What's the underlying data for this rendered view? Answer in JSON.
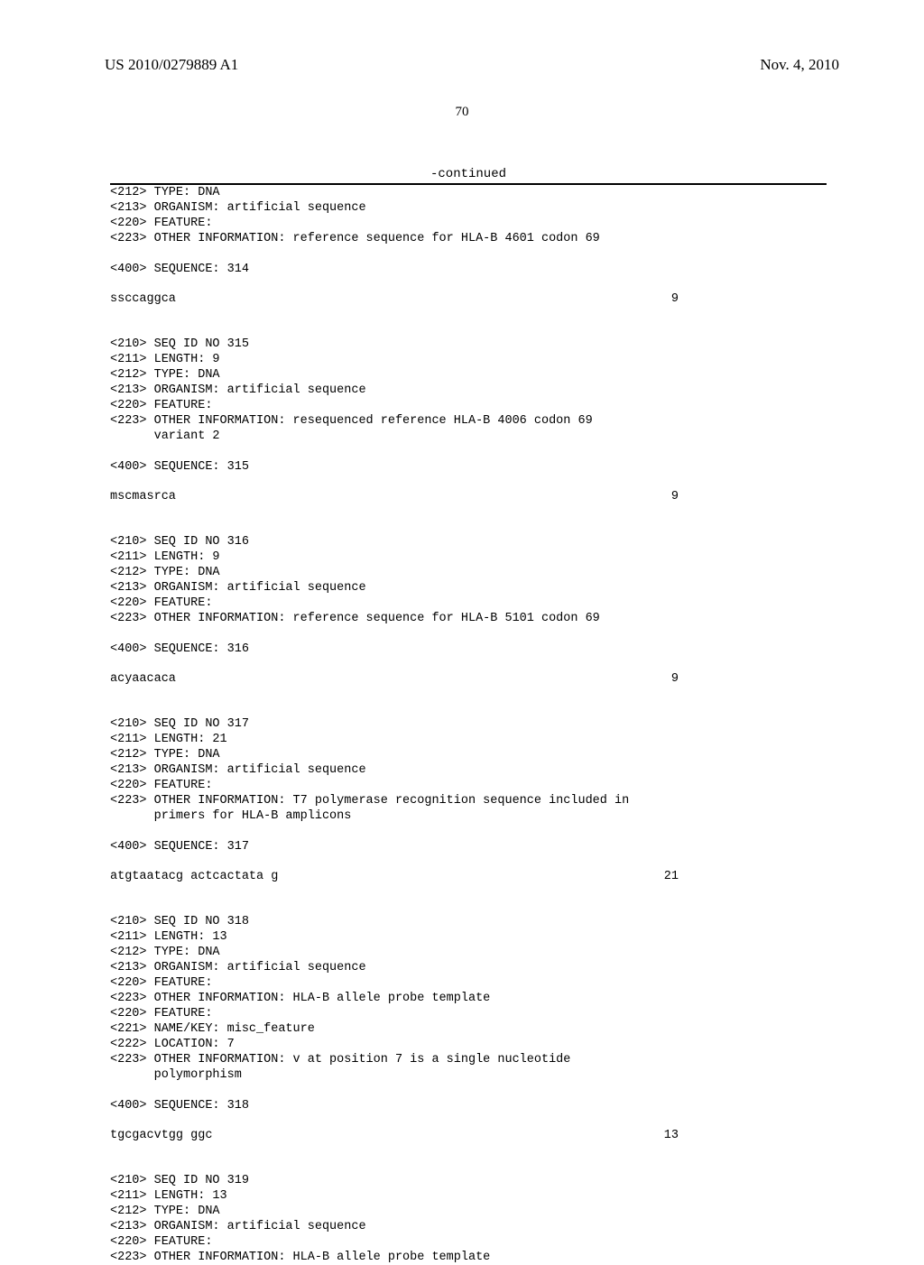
{
  "header": {
    "pub_no": "US 2010/0279889 A1",
    "pub_date": "Nov. 4, 2010"
  },
  "page_number": "70",
  "continued_label": "-continued",
  "entries": [
    {
      "lines": [
        "<212> TYPE: DNA",
        "<213> ORGANISM: artificial sequence",
        "<220> FEATURE:",
        "<223> OTHER INFORMATION: reference sequence for HLA-B 4601 codon 69"
      ]
    },
    {
      "gap": "sm"
    },
    {
      "lines": [
        "<400> SEQUENCE: 314"
      ]
    },
    {
      "gap": "sm"
    },
    {
      "seq": {
        "text": "ssccaggca",
        "len": "9"
      }
    },
    {
      "gap": "md"
    },
    {
      "lines": [
        "<210> SEQ ID NO 315",
        "<211> LENGTH: 9",
        "<212> TYPE: DNA",
        "<213> ORGANISM: artificial sequence",
        "<220> FEATURE:",
        "<223> OTHER INFORMATION: resequenced reference HLA-B 4006 codon 69",
        "      variant 2"
      ]
    },
    {
      "gap": "sm"
    },
    {
      "lines": [
        "<400> SEQUENCE: 315"
      ]
    },
    {
      "gap": "sm"
    },
    {
      "seq": {
        "text": "mscmasrca",
        "len": "9"
      }
    },
    {
      "gap": "md"
    },
    {
      "lines": [
        "<210> SEQ ID NO 316",
        "<211> LENGTH: 9",
        "<212> TYPE: DNA",
        "<213> ORGANISM: artificial sequence",
        "<220> FEATURE:",
        "<223> OTHER INFORMATION: reference sequence for HLA-B 5101 codon 69"
      ]
    },
    {
      "gap": "sm"
    },
    {
      "lines": [
        "<400> SEQUENCE: 316"
      ]
    },
    {
      "gap": "sm"
    },
    {
      "seq": {
        "text": "acyaacaca",
        "len": "9"
      }
    },
    {
      "gap": "md"
    },
    {
      "lines": [
        "<210> SEQ ID NO 317",
        "<211> LENGTH: 21",
        "<212> TYPE: DNA",
        "<213> ORGANISM: artificial sequence",
        "<220> FEATURE:",
        "<223> OTHER INFORMATION: T7 polymerase recognition sequence included in",
        "      primers for HLA-B amplicons"
      ]
    },
    {
      "gap": "sm"
    },
    {
      "lines": [
        "<400> SEQUENCE: 317"
      ]
    },
    {
      "gap": "sm"
    },
    {
      "seq": {
        "text": "atgtaatacg actcactata g",
        "len": "21"
      }
    },
    {
      "gap": "md"
    },
    {
      "lines": [
        "<210> SEQ ID NO 318",
        "<211> LENGTH: 13",
        "<212> TYPE: DNA",
        "<213> ORGANISM: artificial sequence",
        "<220> FEATURE:",
        "<223> OTHER INFORMATION: HLA-B allele probe template",
        "<220> FEATURE:",
        "<221> NAME/KEY: misc_feature",
        "<222> LOCATION: 7",
        "<223> OTHER INFORMATION: v at position 7 is a single nucleotide",
        "      polymorphism"
      ]
    },
    {
      "gap": "sm"
    },
    {
      "lines": [
        "<400> SEQUENCE: 318"
      ]
    },
    {
      "gap": "sm"
    },
    {
      "seq": {
        "text": "tgcgacvtgg ggc",
        "len": "13"
      }
    },
    {
      "gap": "md"
    },
    {
      "lines": [
        "<210> SEQ ID NO 319",
        "<211> LENGTH: 13",
        "<212> TYPE: DNA",
        "<213> ORGANISM: artificial sequence",
        "<220> FEATURE:",
        "<223> OTHER INFORMATION: HLA-B allele probe template"
      ]
    }
  ]
}
